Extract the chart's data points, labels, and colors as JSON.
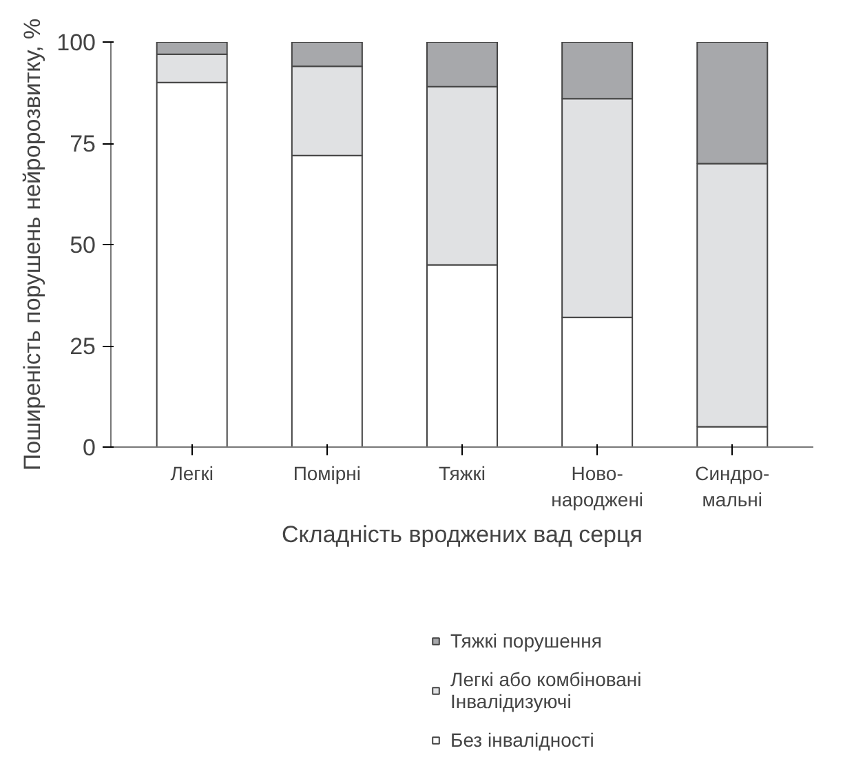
{
  "chart_data": {
    "type": "bar",
    "stacked": true,
    "xlabel": "Складність вроджених вад серця",
    "ylabel": "Поширеність порушень нейророзвитку, %",
    "categories": [
      "Легкі",
      "Помірні",
      "Тяжкі",
      "Ново-\nнароджені",
      "Синдро-\nмальні"
    ],
    "series": [
      {
        "name": "Без інвалідності",
        "color": "#ffffff",
        "values": [
          90,
          72,
          45,
          32,
          5
        ]
      },
      {
        "name": "Легкі або комбіновані\nІнвалідизуючі",
        "color": "#e0e1e3",
        "values": [
          7,
          22,
          44,
          54,
          65
        ]
      },
      {
        "name": "Тяжкі порушення",
        "color": "#a7a8ab",
        "values": [
          3,
          6,
          11,
          14,
          30
        ]
      }
    ],
    "ylim": [
      0,
      100
    ],
    "yticks": [
      0,
      25,
      50,
      75,
      100
    ],
    "grid": false,
    "legend": "bottom"
  }
}
